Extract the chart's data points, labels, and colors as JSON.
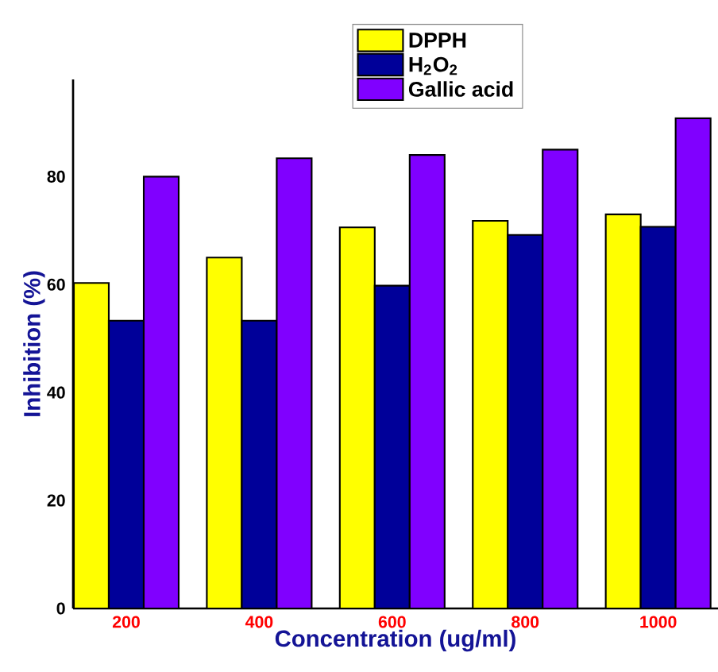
{
  "chart_data": {
    "type": "bar",
    "xlabel": "Concentration (ug/ml)",
    "ylabel": "Inhibition (%)",
    "categories": [
      "200",
      "400",
      "600",
      "800",
      "1000"
    ],
    "series": [
      {
        "name": "DPPH",
        "color": "#ffff00",
        "values": [
          60.3,
          65,
          70.6,
          71.8,
          73
        ]
      },
      {
        "name": "H$_{2}$O$_{2}$",
        "color": "#000099",
        "values": [
          53.3,
          53.3,
          59.8,
          69.2,
          70.7
        ]
      },
      {
        "name": "Gallic acid",
        "color": "#8000ff",
        "values": [
          80,
          83.4,
          84,
          85,
          90.8
        ]
      }
    ],
    "ylim": [
      0,
      98
    ],
    "yticks": [
      0,
      20,
      40,
      60,
      80
    ],
    "grid": false,
    "legend": "top"
  }
}
